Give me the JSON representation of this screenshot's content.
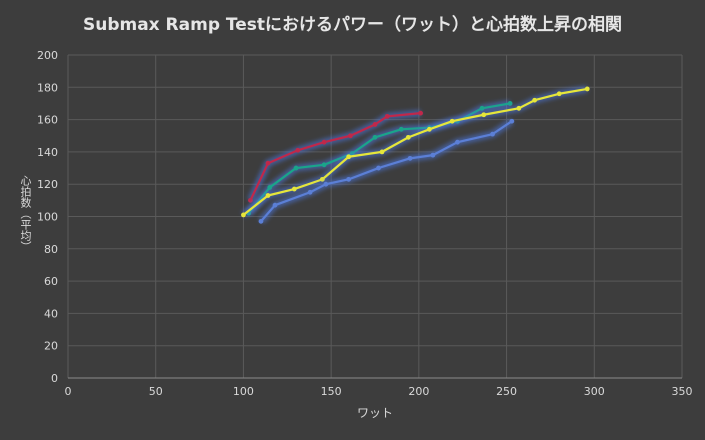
{
  "chart_data": {
    "type": "line",
    "title": "Submax Ramp Testにおけるパワー（ワット）と心拍数上昇の相関",
    "xlabel": "ワット",
    "ylabel": "心拍数（平均）",
    "xlim": [
      0,
      350
    ],
    "ylim": [
      0,
      200
    ],
    "xticks": [
      0,
      50,
      100,
      150,
      200,
      250,
      300,
      350
    ],
    "yticks": [
      0,
      20,
      40,
      60,
      80,
      100,
      120,
      140,
      160,
      180,
      200
    ],
    "grid": true,
    "legend": "none",
    "series": [
      {
        "color": "#c0284a",
        "points": [
          [
            104,
            110
          ],
          [
            114,
            133
          ],
          [
            131,
            141
          ],
          [
            146,
            146
          ],
          [
            161,
            150
          ],
          [
            175,
            157
          ],
          [
            182,
            162
          ],
          [
            201,
            164
          ]
        ]
      },
      {
        "color": "#1aa58a",
        "points": [
          [
            103,
            102
          ],
          [
            115,
            118
          ],
          [
            130,
            130
          ],
          [
            146,
            132
          ],
          [
            162,
            139
          ],
          [
            175,
            149
          ],
          [
            190,
            154
          ],
          [
            206,
            155
          ],
          [
            222,
            159
          ],
          [
            236,
            167
          ],
          [
            252,
            170
          ]
        ]
      },
      {
        "color": "#e6e63a",
        "points": [
          [
            100,
            101
          ],
          [
            114,
            113
          ],
          [
            129,
            117
          ],
          [
            145,
            123
          ],
          [
            160,
            137
          ],
          [
            179,
            140
          ],
          [
            194,
            149
          ],
          [
            206,
            154
          ],
          [
            219,
            159
          ],
          [
            237,
            163
          ],
          [
            257,
            167
          ],
          [
            266,
            172
          ],
          [
            280,
            176
          ],
          [
            296,
            179
          ]
        ]
      },
      {
        "color": "#5b7fd6",
        "points": [
          [
            110,
            97
          ],
          [
            118,
            107
          ],
          [
            138,
            115
          ],
          [
            147,
            120
          ],
          [
            160,
            123
          ],
          [
            177,
            130
          ],
          [
            195,
            136
          ],
          [
            208,
            138
          ],
          [
            222,
            146
          ],
          [
            242,
            151
          ],
          [
            253,
            159
          ]
        ]
      }
    ]
  }
}
